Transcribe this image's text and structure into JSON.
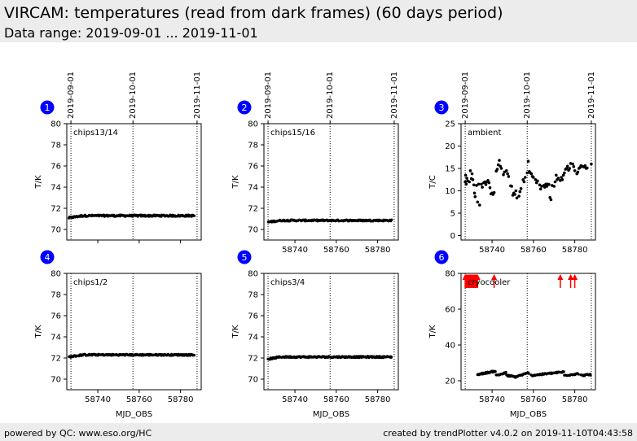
{
  "header": {
    "title": "VIRCAM: temperatures (read from dark frames) (60 days period)",
    "subtitle": "Data range: 2019-09-01 ... 2019-11-01"
  },
  "footer": {
    "left": "powered by QC: www.eso.org/HC",
    "right": "created by trendPlotter v4.0.2 on 2019-11-10T04:43:58"
  },
  "colors": {
    "marker": "#0000ff",
    "data": "#000000",
    "outlier": "#ff0000",
    "header_bg": "#ececec"
  },
  "chart_data": [
    {
      "type": "scatter",
      "marker": "1",
      "label": "chips13/14",
      "ylabel": "T/K",
      "xlabel": "",
      "xlim": [
        58725,
        58790
      ],
      "ylim": [
        69,
        80
      ],
      "yticks": [
        70,
        72,
        74,
        76,
        78,
        80
      ],
      "xticks": [
        58740,
        58760,
        58780
      ],
      "show_xtick_labels": false,
      "date_ticks": [
        {
          "x": 58727,
          "label": "2019-09-01"
        },
        {
          "x": 58757,
          "label": "2019-10-01"
        },
        {
          "x": 58788,
          "label": "2019-11-01"
        }
      ],
      "series": [
        {
          "type": "band",
          "x": [
            58726,
            58733,
            58787
          ],
          "y": [
            71.1,
            71.3,
            71.3
          ],
          "y_jitter": 0.08
        }
      ]
    },
    {
      "type": "scatter",
      "marker": "2",
      "label": "chips15/16",
      "ylabel": "T/K",
      "xlabel": "",
      "xlim": [
        58725,
        58790
      ],
      "ylim": [
        69,
        80
      ],
      "yticks": [
        70,
        72,
        74,
        76,
        78,
        80
      ],
      "xticks": [
        58740,
        58760,
        58780
      ],
      "show_xtick_labels": true,
      "date_ticks": [
        {
          "x": 58727,
          "label": "2019-09-01"
        },
        {
          "x": 58757,
          "label": "2019-10-01"
        },
        {
          "x": 58788,
          "label": "2019-11-01"
        }
      ],
      "series": [
        {
          "type": "band",
          "x": [
            58727,
            58733,
            58787
          ],
          "y": [
            70.7,
            70.85,
            70.85
          ],
          "y_jitter": 0.07
        }
      ]
    },
    {
      "type": "scatter",
      "marker": "3",
      "label": "ambient",
      "ylabel": "T/C",
      "xlabel": "",
      "xlim": [
        58725,
        58790
      ],
      "ylim": [
        -1,
        25
      ],
      "yticks": [
        0,
        5,
        10,
        15,
        20,
        25
      ],
      "xticks": [
        58740,
        58760,
        58780
      ],
      "show_xtick_labels": true,
      "date_ticks": [
        {
          "x": 58727,
          "label": "2019-09-01"
        },
        {
          "x": 58757,
          "label": "2019-10-01"
        },
        {
          "x": 58788,
          "label": "2019-11-01"
        }
      ],
      "series": [
        {
          "type": "points",
          "x": [
            58727.0,
            58727.2,
            58727.5,
            58727.8,
            58728.2,
            58729.0,
            58729.5,
            58730.0,
            58730.3,
            58730.7,
            58731.2,
            58731.5,
            58731.8,
            58732.5,
            58733.0,
            58733.5,
            58734.0,
            58734.8,
            58735.3,
            58736.0,
            58736.5,
            58737.0,
            58737.5,
            58738.0,
            58738.5,
            58739.0,
            58739.5,
            58740.0,
            58740.5,
            58741.0,
            58742.0,
            58742.5,
            58743.0,
            58743.5,
            58744.0,
            58744.5,
            58745.5,
            58746.0,
            58747.0,
            58747.5,
            58748.0,
            58749.0,
            58749.5,
            58750.0,
            58750.5,
            58751.0,
            58751.5,
            58752.0,
            58753.0,
            58753.5,
            58754.0,
            58755.0,
            58755.5,
            58756.0,
            58757.0,
            58757.5,
            58758.0,
            58758.5,
            58759.0,
            58759.5,
            58760.0,
            58761.0,
            58761.5,
            58762.0,
            58763.0,
            58763.5,
            58764.0,
            58765.0,
            58765.5,
            58766.0,
            58766.5,
            58767.0,
            58767.5,
            58768.0,
            58768.5,
            58769.0,
            58770.0,
            58770.5,
            58771.0,
            58771.5,
            58772.0,
            58773.0,
            58773.5,
            58774.0,
            58774.5,
            58775.0,
            58775.5,
            58776.0,
            58776.5,
            58777.0,
            58777.5,
            58778.0,
            58779.0,
            58779.5,
            58780.0,
            58781.0,
            58781.5,
            58782.0,
            58782.5,
            58783.0,
            58783.5,
            58784.0,
            58784.5,
            58785.0,
            58785.5,
            58786.0,
            58788.0
          ],
          "y": [
            12.0,
            13.5,
            11.5,
            12.8,
            12.2,
            12.0,
            14.5,
            12.7,
            13.8,
            12.5,
            11.3,
            9.5,
            8.7,
            11.2,
            7.5,
            11.5,
            6.8,
            11.5,
            10.8,
            11.8,
            12.0,
            11.4,
            12.0,
            12.3,
            11.8,
            10.7,
            9.3,
            9.5,
            9.2,
            9.6,
            14.4,
            14.8,
            15.8,
            16.8,
            15.5,
            15.0,
            13.6,
            14.2,
            14.5,
            13.8,
            13.2,
            11.1,
            11.0,
            9.0,
            9.5,
            9.2,
            10.0,
            8.4,
            8.8,
            9.8,
            10.5,
            12.5,
            12.0,
            13.0,
            14.0,
            16.6,
            14.3,
            14.0,
            13.8,
            13.2,
            13.0,
            12.5,
            11.8,
            12.2,
            11.3,
            10.4,
            11.0,
            11.2,
            10.8,
            11.5,
            11.0,
            11.5,
            11.4,
            8.5,
            8.0,
            11.2,
            11.0,
            12.0,
            13.5,
            12.5,
            12.8,
            12.3,
            13.0,
            12.5,
            13.5,
            14.0,
            14.8,
            15.0,
            15.5,
            14.6,
            15.0,
            16.1,
            16.0,
            15.4,
            14.5,
            13.8,
            14.2,
            15.0,
            15.2,
            15.6,
            15.5,
            15.4,
            15.3,
            15.6,
            15.0,
            15.1,
            16.0
          ]
        }
      ]
    },
    {
      "type": "scatter",
      "marker": "4",
      "label": "chips1/2",
      "ylabel": "T/K",
      "xlabel": "MJD_OBS",
      "xlim": [
        58725,
        58790
      ],
      "ylim": [
        69,
        80
      ],
      "yticks": [
        70,
        72,
        74,
        76,
        78,
        80
      ],
      "xticks": [
        58740,
        58760,
        58780
      ],
      "show_xtick_labels": true,
      "date_ticks": [
        {
          "x": 58727,
          "label": ""
        },
        {
          "x": 58757,
          "label": ""
        },
        {
          "x": 58788,
          "label": ""
        }
      ],
      "series": [
        {
          "type": "band",
          "x": [
            58726,
            58733,
            58787
          ],
          "y": [
            72.1,
            72.3,
            72.3
          ],
          "y_jitter": 0.07
        }
      ]
    },
    {
      "type": "scatter",
      "marker": "5",
      "label": "chips3/4",
      "ylabel": "T/K",
      "xlabel": "MJD_OBS",
      "xlim": [
        58725,
        58790
      ],
      "ylim": [
        69,
        80
      ],
      "yticks": [
        70,
        72,
        74,
        76,
        78,
        80
      ],
      "xticks": [
        58740,
        58760,
        58780
      ],
      "show_xtick_labels": true,
      "date_ticks": [
        {
          "x": 58727,
          "label": ""
        },
        {
          "x": 58757,
          "label": ""
        },
        {
          "x": 58788,
          "label": ""
        }
      ],
      "series": [
        {
          "type": "band",
          "x": [
            58727,
            58733,
            58787
          ],
          "y": [
            71.9,
            72.1,
            72.1
          ],
          "y_jitter": 0.07
        }
      ]
    },
    {
      "type": "scatter",
      "marker": "6",
      "label": "cryocooler",
      "ylabel": "T/K",
      "xlabel": "MJD_OBS",
      "xlim": [
        58725,
        58790
      ],
      "ylim": [
        15,
        80
      ],
      "yticks": [
        20,
        40,
        60,
        80
      ],
      "xticks": [
        58740,
        58760,
        58780
      ],
      "show_xtick_labels": true,
      "date_ticks": [
        {
          "x": 58727,
          "label": ""
        },
        {
          "x": 58757,
          "label": ""
        },
        {
          "x": 58788,
          "label": ""
        }
      ],
      "series": [
        {
          "type": "band",
          "x": [
            58733,
            58742
          ],
          "y": [
            23.5,
            25.5
          ],
          "y_jitter": 0.4
        },
        {
          "type": "band",
          "x": [
            58742,
            58747
          ],
          "y": [
            23.0,
            24.5
          ],
          "y_jitter": 0.4
        },
        {
          "type": "band",
          "x": [
            58747,
            58752
          ],
          "y": [
            23.0,
            22.0
          ],
          "y_jitter": 0.4
        },
        {
          "type": "band",
          "x": [
            58752,
            58758
          ],
          "y": [
            22.5,
            24.5
          ],
          "y_jitter": 0.4
        },
        {
          "type": "band",
          "x": [
            58759,
            58775
          ],
          "y": [
            23.0,
            25.0
          ],
          "y_jitter": 0.4
        },
        {
          "type": "band",
          "x": [
            58775,
            58782
          ],
          "y": [
            23.0,
            24.0
          ],
          "y_jitter": 0.4
        },
        {
          "type": "band",
          "x": [
            58783,
            58788
          ],
          "y": [
            23.0,
            23.5
          ],
          "y_jitter": 0.4
        },
        {
          "type": "outliers",
          "style": "arrow",
          "color": "#ff0000",
          "x": [
            58727.0,
            58727.4,
            58727.8,
            58728.2,
            58728.6,
            58729.0,
            58729.4,
            58729.8,
            58730.2,
            58730.6,
            58731.0,
            58731.4,
            58731.8,
            58732.2,
            58732.6,
            58733.0,
            58741.0,
            58773.0,
            58778.0,
            58780.0
          ],
          "y": [
            80,
            80,
            80,
            80,
            80,
            80,
            80,
            80,
            80,
            80,
            80,
            80,
            80,
            80,
            80,
            80,
            80,
            80,
            80,
            80
          ]
        }
      ]
    }
  ]
}
